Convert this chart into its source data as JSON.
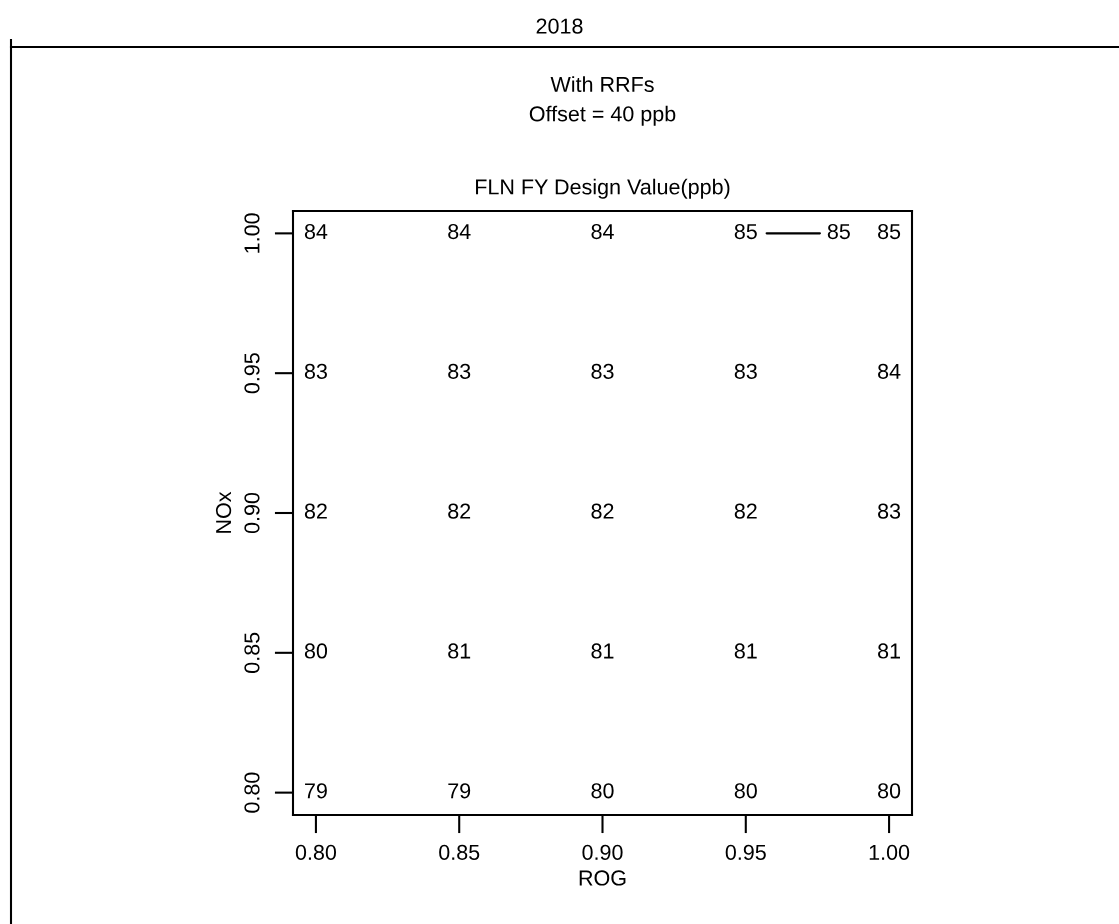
{
  "chart_data": {
    "type": "heatmap",
    "title": "FLN FY Design Value(ppb)",
    "subtitle": "With RRFs\nOffset = 40 ppb",
    "xlabel": "ROG",
    "ylabel": "NOx",
    "categories": [
      "0.80",
      "0.85",
      "0.90",
      "0.95",
      "1.00"
    ],
    "y_categories": [
      "1.00",
      "0.95",
      "0.90",
      "0.85",
      "0.80"
    ],
    "cells": [
      [
        84,
        84,
        84,
        85,
        85
      ],
      [
        83,
        83,
        83,
        83,
        84
      ],
      [
        82,
        82,
        82,
        82,
        83
      ],
      [
        80,
        81,
        81,
        81,
        81
      ],
      [
        79,
        79,
        80,
        80,
        80
      ]
    ],
    "data_labels": true,
    "annotations": [
      "2018",
      "85"
    ]
  }
}
